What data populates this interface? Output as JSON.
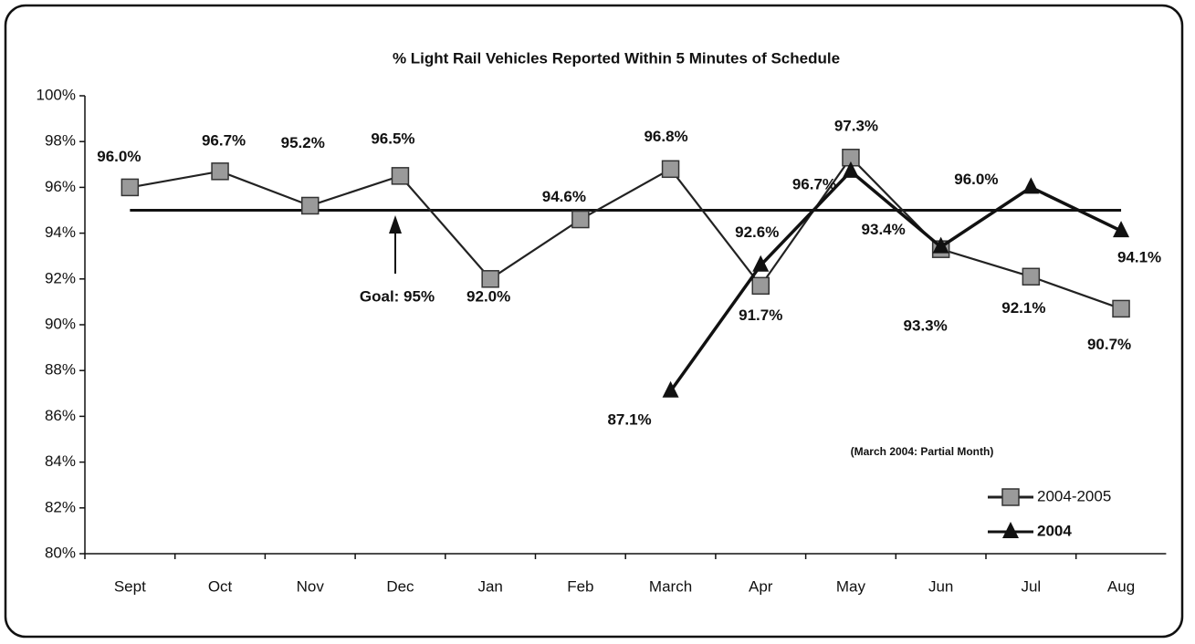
{
  "chart_data": {
    "type": "line",
    "title": "% Light Rail Vehicles Reported Within 5 Minutes of Schedule",
    "categories": [
      "Sept",
      "Oct",
      "Nov",
      "Dec",
      "Jan",
      "Feb",
      "March",
      "Apr",
      "May",
      "Jun",
      "Jul",
      "Aug"
    ],
    "series": [
      {
        "name": "2004-2005",
        "color": "#222222",
        "marker": "square",
        "marker_color": "#9a9a9a",
        "values": [
          96.0,
          96.7,
          95.2,
          96.5,
          92.0,
          94.6,
          96.8,
          91.7,
          97.3,
          93.3,
          92.1,
          90.7
        ],
        "value_labels": [
          "96.0%",
          "96.7%",
          "95.2%",
          "96.5%",
          "92.0%",
          "94.6%",
          "96.8%",
          "91.7%",
          "97.3%",
          "93.3%",
          "92.1%",
          "90.7%"
        ]
      },
      {
        "name": "2004",
        "color": "#111111",
        "marker": "triangle",
        "marker_color": "#111111",
        "values": [
          null,
          null,
          null,
          null,
          null,
          null,
          87.1,
          92.6,
          96.7,
          93.4,
          96.0,
          94.1
        ],
        "value_labels": [
          null,
          null,
          null,
          null,
          null,
          null,
          "87.1%",
          "92.6%",
          "96.7%",
          "93.4%",
          "96.0%",
          "94.1%"
        ]
      }
    ],
    "goal": 95,
    "annotations": [
      "Goal:  95%",
      "(March 2004: Partial Month)"
    ],
    "ylim": [
      80,
      100
    ],
    "yticks": [
      {
        "value": 80,
        "label": "80%"
      },
      {
        "value": 82,
        "label": "82%"
      },
      {
        "value": 84,
        "label": "84%"
      },
      {
        "value": 86,
        "label": "86%"
      },
      {
        "value": 88,
        "label": "88%"
      },
      {
        "value": 90,
        "label": "90%"
      },
      {
        "value": 92,
        "label": "92%"
      },
      {
        "value": 94,
        "label": "94%"
      },
      {
        "value": 96,
        "label": "96%"
      },
      {
        "value": 98,
        "label": "98%"
      },
      {
        "value": 100,
        "label": "100%"
      }
    ],
    "grid": false,
    "legend": "lower right"
  }
}
